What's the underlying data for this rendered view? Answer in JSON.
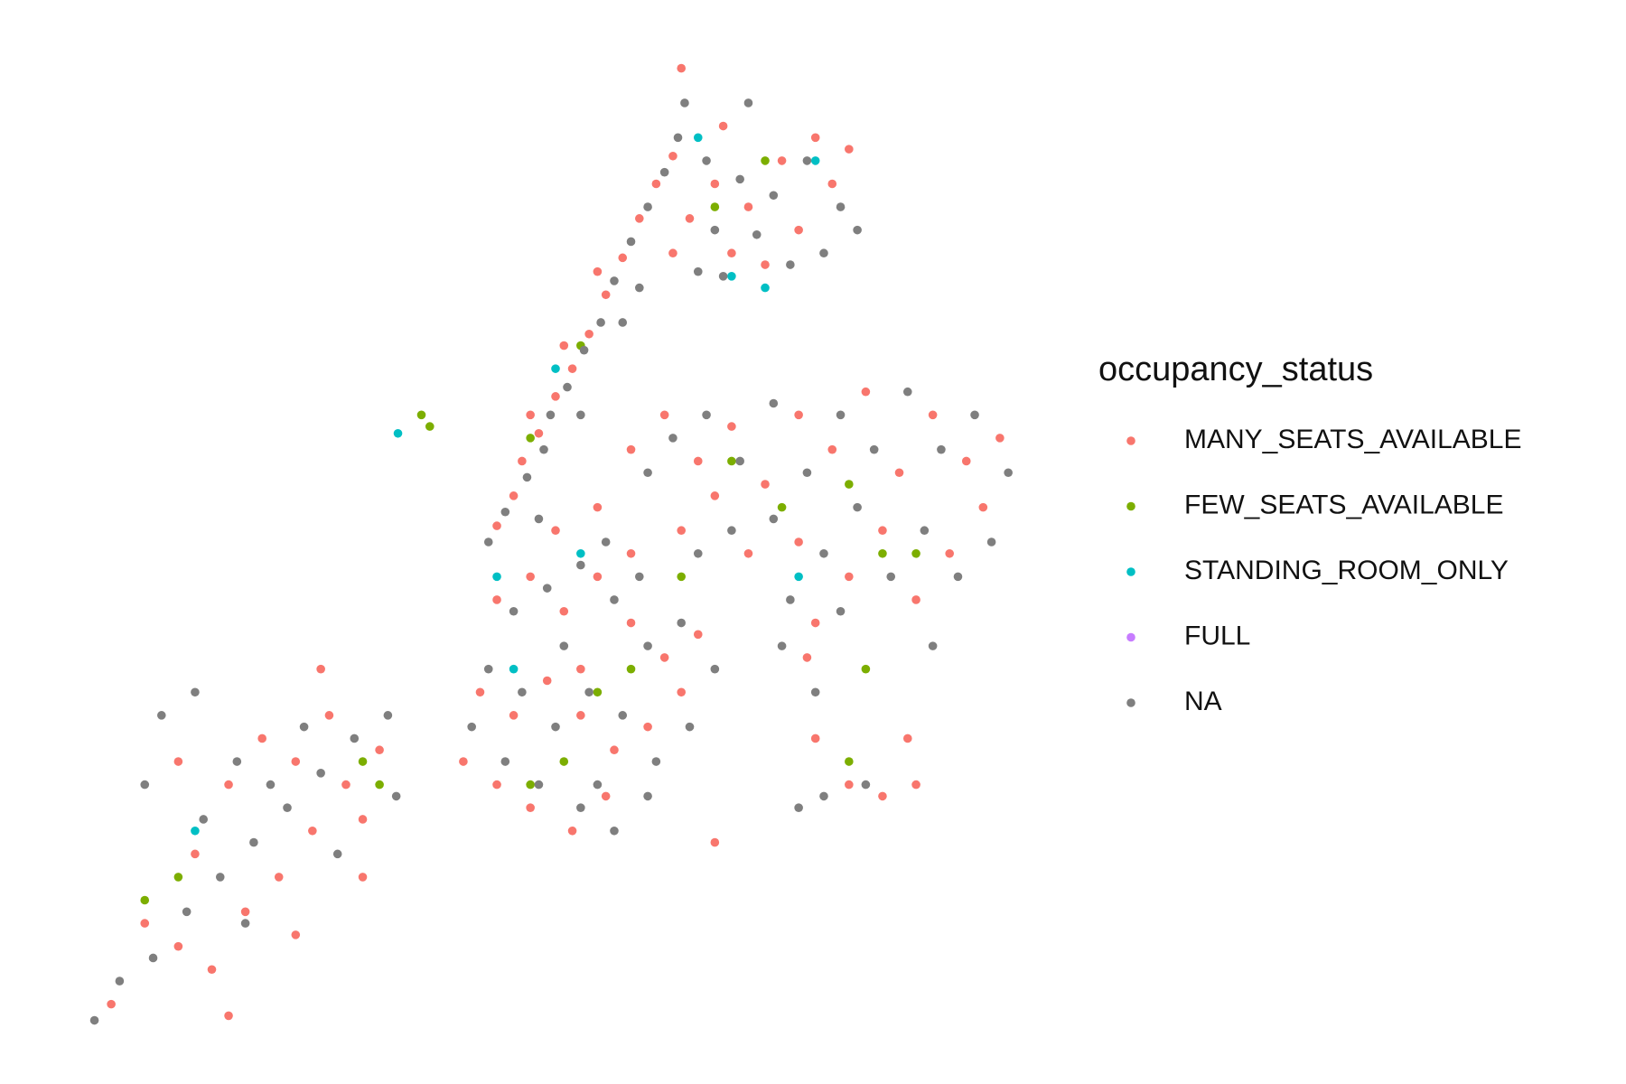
{
  "chart_data": {
    "type": "scatter",
    "legend_title": "occupancy_status",
    "legend": "right",
    "xlim": [
      -74.26,
      -73.69
    ],
    "ylim": [
      40.49,
      40.92
    ],
    "grid": false,
    "series": [
      {
        "name": "MANY_SEATS_AVAILABLE",
        "color": "#F8766D",
        "x": [
          -74.01,
          -74.0,
          -73.995,
          -73.985,
          -73.975,
          -73.965,
          -73.955,
          -73.945,
          -73.935,
          -73.925,
          -73.99,
          -73.97,
          -73.95,
          -73.915,
          -73.905,
          -73.88,
          -73.86,
          -73.84,
          -73.82,
          -73.8,
          -73.87,
          -73.85,
          -73.895,
          -73.83,
          -73.81,
          -73.905,
          -73.875,
          -73.9,
          -73.93,
          -73.91,
          -73.89,
          -73.87,
          -73.85,
          -73.83,
          -73.81,
          -73.79,
          -73.77,
          -73.75,
          -73.73,
          -73.71,
          -73.86,
          -73.83,
          -73.8,
          -73.78,
          -73.76,
          -73.74,
          -73.72,
          -73.9,
          -73.88,
          -73.82,
          -74.01,
          -73.99,
          -73.97,
          -73.95,
          -73.93,
          -73.91,
          -73.89,
          -74.02,
          -74.0,
          -73.98,
          -73.96,
          -73.94,
          -73.92,
          -73.9,
          -74.03,
          -74.01,
          -73.99,
          -73.965,
          -73.945,
          -73.975,
          -73.95,
          -73.93,
          -73.96,
          -73.88,
          -73.8,
          -73.78,
          -73.76,
          -73.825,
          -73.82,
          -73.765,
          -74.24,
          -74.2,
          -74.18,
          -74.16,
          -74.14,
          -74.12,
          -74.1,
          -74.08,
          -74.17,
          -74.15,
          -74.13,
          -74.11,
          -74.09,
          -74.19,
          -74.2,
          -74.115,
          -74.22,
          -74.17,
          -74.13,
          -74.09
        ],
        "y": [
          40.712,
          40.725,
          40.74,
          40.752,
          40.768,
          40.78,
          40.795,
          40.812,
          40.828,
          40.845,
          40.76,
          40.79,
          40.822,
          40.86,
          40.872,
          40.86,
          40.85,
          40.87,
          40.88,
          40.875,
          40.83,
          40.825,
          40.845,
          40.84,
          40.86,
          40.83,
          40.885,
          40.91,
          40.745,
          40.76,
          40.74,
          40.755,
          40.73,
          40.76,
          40.745,
          40.77,
          40.735,
          40.76,
          40.74,
          40.75,
          40.7,
          40.705,
          40.69,
          40.71,
          40.68,
          40.7,
          40.72,
          40.71,
          40.725,
          40.67,
          40.68,
          40.69,
          40.675,
          40.69,
          40.67,
          40.655,
          40.665,
          40.64,
          40.63,
          40.645,
          40.63,
          40.615,
          40.625,
          40.64,
          40.61,
          40.6,
          40.59,
          40.58,
          40.595,
          40.71,
          40.72,
          40.7,
          40.65,
          40.575,
          40.6,
          40.595,
          40.6,
          40.655,
          40.62,
          40.62,
          40.505,
          40.53,
          40.52,
          40.545,
          40.56,
          40.58,
          40.6,
          40.615,
          40.6,
          40.62,
          40.61,
          40.63,
          40.585,
          40.57,
          40.61,
          40.65,
          40.54,
          40.5,
          40.535,
          40.56
        ]
      },
      {
        "name": "FEW_SEATS_AVAILABLE",
        "color": "#7CAE00",
        "x": [
          -73.99,
          -73.96,
          -73.88,
          -73.85,
          -73.87,
          -73.84,
          -73.8,
          -73.78,
          -73.76,
          -73.9,
          -73.95,
          -73.93,
          -73.97,
          -73.99,
          -74.055,
          -74.05,
          -74.09,
          -74.08,
          -74.2,
          -74.22,
          -73.8,
          -73.79
        ],
        "y": [
          40.75,
          40.79,
          40.85,
          40.87,
          40.74,
          40.72,
          40.73,
          40.7,
          40.7,
          40.69,
          40.64,
          40.65,
          40.61,
          40.6,
          40.76,
          40.755,
          40.61,
          40.6,
          40.56,
          40.55,
          40.61,
          40.65
        ]
      },
      {
        "name": "STANDING_ROOM_ONLY",
        "color": "#00BFC4",
        "x": [
          -74.069,
          -73.89,
          -73.82,
          -73.87,
          -73.85,
          -73.975,
          -74.01,
          -74.0,
          -73.96,
          -73.83,
          -74.19
        ],
        "y": [
          40.752,
          40.88,
          40.87,
          40.82,
          40.815,
          40.78,
          40.69,
          40.65,
          40.7,
          40.69,
          40.58
        ]
      },
      {
        "name": "FULL",
        "color": "#C77CFF",
        "x": [],
        "y": []
      },
      {
        "name": "NA",
        "color": "#7F7F7F",
        "x": [
          -74.015,
          -74.005,
          -73.992,
          -73.982,
          -73.978,
          -73.968,
          -73.958,
          -73.948,
          -73.94,
          -73.93,
          -73.92,
          -73.91,
          -73.902,
          -73.898,
          -73.885,
          -73.865,
          -73.845,
          -73.825,
          -73.805,
          -73.855,
          -73.835,
          -73.815,
          -73.88,
          -73.89,
          -73.795,
          -73.86,
          -73.875,
          -73.925,
          -73.935,
          -73.96,
          -73.92,
          -73.905,
          -73.885,
          -73.865,
          -73.845,
          -73.825,
          -73.805,
          -73.785,
          -73.765,
          -73.745,
          -73.725,
          -73.705,
          -73.87,
          -73.845,
          -73.815,
          -73.795,
          -73.775,
          -73.755,
          -73.735,
          -73.715,
          -73.89,
          -73.835,
          -73.805,
          -73.75,
          -73.84,
          -74.0,
          -73.98,
          -73.96,
          -73.94,
          -73.92,
          -73.9,
          -73.88,
          -74.015,
          -73.995,
          -73.975,
          -73.955,
          -73.935,
          -73.915,
          -73.895,
          -74.025,
          -74.005,
          -73.985,
          -73.96,
          -73.94,
          -73.92,
          -73.985,
          -73.945,
          -73.925,
          -73.97,
          -73.95,
          -73.83,
          -73.815,
          -73.79,
          -73.82,
          -74.25,
          -74.235,
          -74.215,
          -74.195,
          -74.175,
          -74.155,
          -74.135,
          -74.115,
          -74.095,
          -74.075,
          -74.185,
          -74.165,
          -74.145,
          -74.125,
          -74.105,
          -74.22,
          -74.21,
          -74.19,
          -74.16,
          -74.07
        ],
        "y": [
          40.705,
          40.718,
          40.733,
          40.745,
          40.76,
          40.772,
          40.788,
          40.8,
          40.818,
          40.835,
          40.85,
          40.865,
          40.88,
          40.895,
          40.87,
          40.862,
          40.855,
          40.87,
          40.85,
          40.838,
          40.825,
          40.83,
          40.84,
          40.822,
          40.84,
          40.895,
          40.82,
          40.815,
          40.8,
          40.76,
          40.735,
          40.75,
          40.76,
          40.74,
          40.765,
          40.735,
          40.76,
          40.745,
          40.77,
          40.745,
          40.76,
          40.735,
          40.71,
          40.715,
          40.7,
          40.72,
          40.69,
          40.71,
          40.69,
          40.705,
          40.7,
          40.68,
          40.675,
          40.66,
          40.66,
          40.675,
          40.685,
          40.695,
          40.68,
          40.66,
          40.67,
          40.65,
          40.65,
          40.64,
          40.625,
          40.64,
          40.63,
          40.61,
          40.625,
          40.625,
          40.61,
          40.6,
          40.59,
          40.58,
          40.595,
          40.715,
          40.705,
          40.69,
          40.66,
          40.6,
          40.59,
          40.595,
          40.6,
          40.64,
          40.498,
          40.515,
          40.525,
          40.545,
          40.56,
          40.575,
          40.59,
          40.605,
          40.62,
          40.63,
          40.585,
          40.61,
          40.6,
          40.625,
          40.57,
          40.6,
          40.63,
          40.64,
          40.54,
          40.595
        ]
      }
    ]
  }
}
